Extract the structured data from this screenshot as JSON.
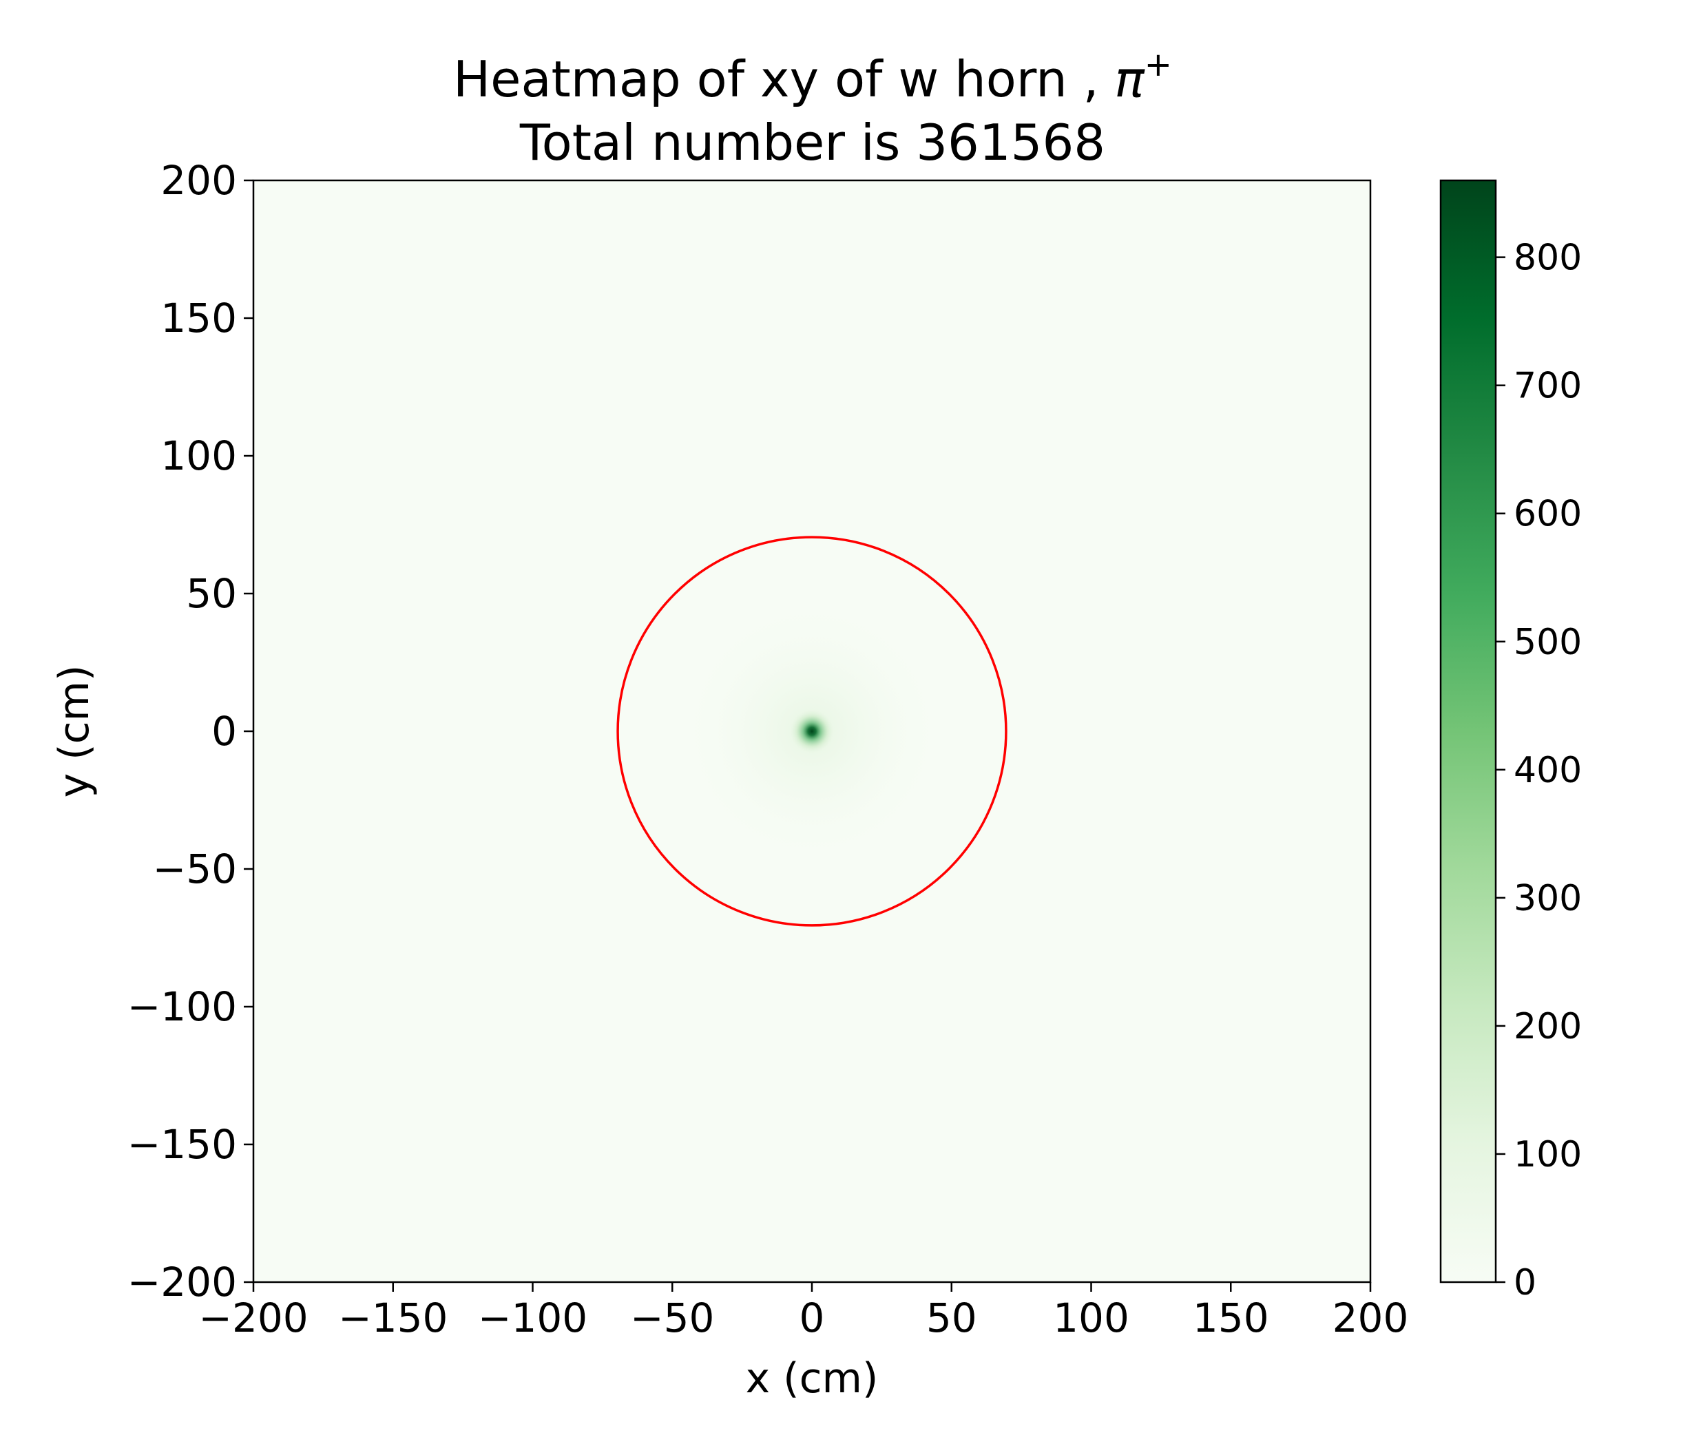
{
  "chart_data": {
    "type": "heatmap",
    "title_line1_prefix": "Heatmap of xy of w horn , ",
    "title_symbol": "π",
    "title_superscript": "+",
    "title_line2": "Total number is 361568",
    "xlabel": "x (cm)",
    "ylabel": "y (cm)",
    "xlim": [
      -200,
      200
    ],
    "ylim": [
      -200,
      200
    ],
    "x_ticks": [
      -200,
      -150,
      -100,
      -50,
      0,
      50,
      100,
      150,
      200
    ],
    "y_ticks": [
      -200,
      -150,
      -100,
      -50,
      0,
      50,
      100,
      150,
      200
    ],
    "x_tick_labels": [
      "−200",
      "−150",
      "−100",
      "−50",
      "0",
      "50",
      "100",
      "150",
      "200"
    ],
    "y_tick_labels": [
      "−200",
      "−150",
      "−100",
      "−50",
      "0",
      "50",
      "100",
      "150",
      "200"
    ],
    "colormap": "Greens",
    "color_low": "#f7fcf5",
    "color_high": "#00441b",
    "colorbar": {
      "min": 0,
      "max": 860,
      "ticks": [
        0,
        100,
        200,
        300,
        400,
        500,
        600,
        700,
        800
      ],
      "tick_labels": [
        "0",
        "100",
        "200",
        "300",
        "400",
        "500",
        "600",
        "700",
        "800"
      ]
    },
    "hotspot": {
      "x": 0,
      "y": 0,
      "peak_value": 860
    },
    "circle": {
      "center_x": 0,
      "center_y": 0,
      "radius": 70,
      "color": "#ff0000"
    },
    "grid": false,
    "legend": "none"
  }
}
